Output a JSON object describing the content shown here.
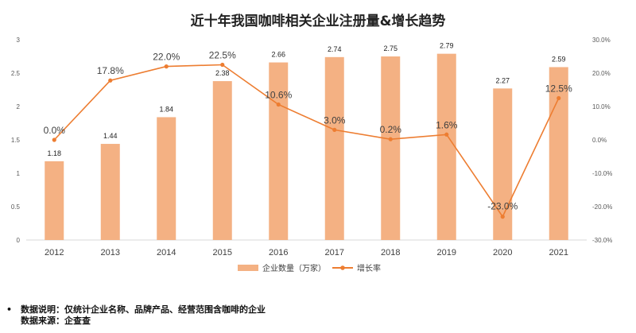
{
  "chart_data": {
    "type": "bar",
    "title": "近十年我国咖啡相关企业注册量&增长趋势",
    "categories": [
      "2012",
      "2013",
      "2014",
      "2015",
      "2016",
      "2017",
      "2018",
      "2019",
      "2020",
      "2021"
    ],
    "series": [
      {
        "name": "企业数量（万家）",
        "type": "bar",
        "axis": "left",
        "values": [
          1.18,
          1.44,
          1.84,
          2.38,
          2.66,
          2.74,
          2.75,
          2.79,
          2.27,
          2.59
        ],
        "labels": [
          "1.18",
          "1.44",
          "1.84",
          "2.38",
          "2.66",
          "2.74",
          "2.75",
          "2.79",
          "2.27",
          "2.59"
        ],
        "color": "#F4B183"
      },
      {
        "name": "增长率",
        "type": "line",
        "axis": "right",
        "values": [
          0.0,
          17.8,
          22.0,
          22.5,
          10.6,
          3.0,
          0.2,
          1.6,
          -23.0,
          12.5
        ],
        "labels": [
          "0.0%",
          "17.8%",
          "22.0%",
          "22.5%",
          "10.6%",
          "3.0%",
          "0.2%",
          "1.6%",
          "-23.0%",
          "12.5%"
        ],
        "color": "#ED7D31"
      }
    ],
    "y_left": {
      "ylim": [
        0,
        3
      ],
      "ticks": [
        "0",
        "0.5",
        "1",
        "1.5",
        "2",
        "2.5",
        "3"
      ]
    },
    "y_right": {
      "ylim": [
        -30,
        30
      ],
      "ticks": [
        "-30.0%",
        "-20.0%",
        "-10.0%",
        "0.0%",
        "10.0%",
        "20.0%",
        "30.0%"
      ]
    },
    "grid": false,
    "legend": "bottom"
  },
  "notes": {
    "bullet": "•",
    "line1": "数据说明：仅统计企业名称、品牌产品、经营范围含咖啡的企业",
    "line2": "数据来源：企查查"
  }
}
